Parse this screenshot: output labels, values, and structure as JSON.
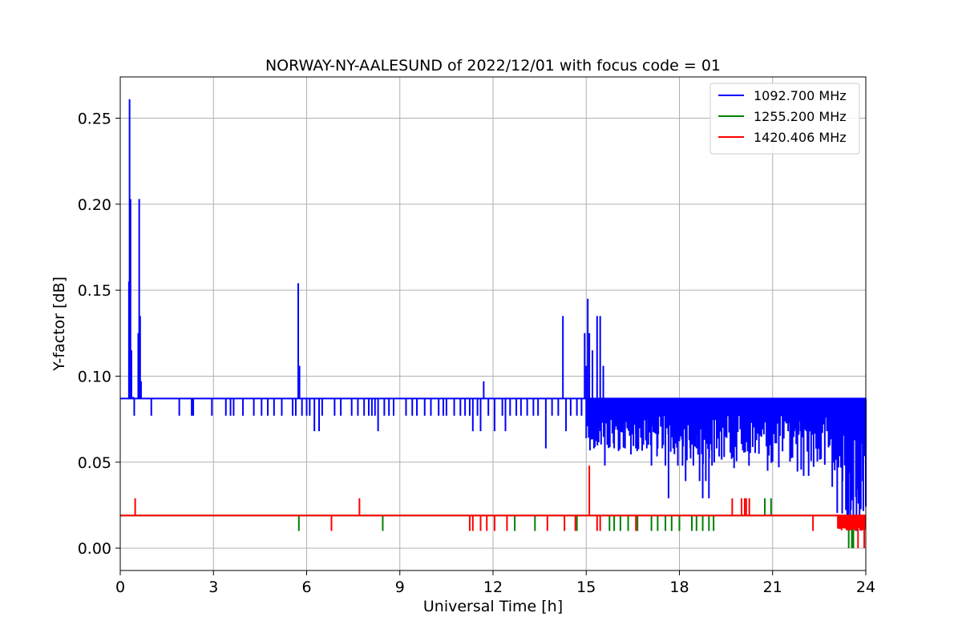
{
  "chart_data": {
    "type": "line",
    "title": "NORWAY-NY-AALESUND of 2022/12/01 with focus code = 01",
    "xlabel": "Universal Time [h]",
    "ylabel": "Y-factor [dB]",
    "xlim": [
      0,
      24
    ],
    "ylim": [
      -0.013,
      0.274
    ],
    "xticks": [
      0,
      3,
      6,
      9,
      12,
      15,
      18,
      21,
      24
    ],
    "xtick_labels": [
      "0",
      "3",
      "6",
      "9",
      "12",
      "15",
      "18",
      "21",
      "24"
    ],
    "yticks": [
      0.0,
      0.05,
      0.1,
      0.15,
      0.2,
      0.25
    ],
    "ytick_labels": [
      "0.00",
      "0.05",
      "0.10",
      "0.15",
      "0.20",
      "0.25"
    ],
    "grid": true,
    "legend_position": "top-right",
    "series": [
      {
        "name": "1092.700 MHz",
        "color": "#0000ff",
        "baseline": 0.087,
        "spikes": [
          [
            0.28,
            0.155
          ],
          [
            0.3,
            0.261
          ],
          [
            0.33,
            0.203
          ],
          [
            0.36,
            0.115
          ],
          [
            0.42,
            0.088
          ],
          [
            0.58,
            0.125
          ],
          [
            0.61,
            0.203
          ],
          [
            0.64,
            0.135
          ],
          [
            0.67,
            0.097
          ],
          [
            5.73,
            0.154
          ],
          [
            5.77,
            0.106
          ],
          [
            11.7,
            0.097
          ],
          [
            14.25,
            0.135
          ],
          [
            14.95,
            0.125
          ],
          [
            15.0,
            0.106
          ],
          [
            15.05,
            0.145
          ],
          [
            15.1,
            0.125
          ],
          [
            15.2,
            0.115
          ],
          [
            15.35,
            0.135
          ],
          [
            15.45,
            0.135
          ],
          [
            15.55,
            0.106
          ]
        ],
        "dips": [
          [
            0.45,
            0.077
          ],
          [
            1.0,
            0.077
          ],
          [
            1.9,
            0.077
          ],
          [
            2.3,
            0.077
          ],
          [
            2.35,
            0.077
          ],
          [
            2.95,
            0.077
          ],
          [
            3.4,
            0.077
          ],
          [
            3.55,
            0.077
          ],
          [
            3.65,
            0.077
          ],
          [
            3.95,
            0.077
          ],
          [
            4.3,
            0.077
          ],
          [
            4.55,
            0.077
          ],
          [
            4.75,
            0.077
          ],
          [
            4.95,
            0.077
          ],
          [
            5.2,
            0.077
          ],
          [
            5.55,
            0.077
          ],
          [
            5.65,
            0.077
          ],
          [
            5.85,
            0.077
          ],
          [
            6.0,
            0.077
          ],
          [
            6.1,
            0.077
          ],
          [
            6.25,
            0.068
          ],
          [
            6.4,
            0.068
          ],
          [
            6.5,
            0.077
          ],
          [
            6.9,
            0.077
          ],
          [
            7.1,
            0.077
          ],
          [
            7.45,
            0.077
          ],
          [
            7.65,
            0.077
          ],
          [
            7.85,
            0.077
          ],
          [
            8.0,
            0.077
          ],
          [
            8.1,
            0.077
          ],
          [
            8.2,
            0.077
          ],
          [
            8.3,
            0.068
          ],
          [
            8.5,
            0.077
          ],
          [
            8.65,
            0.077
          ],
          [
            8.8,
            0.077
          ],
          [
            9.2,
            0.077
          ],
          [
            9.4,
            0.077
          ],
          [
            9.55,
            0.077
          ],
          [
            9.8,
            0.077
          ],
          [
            10.0,
            0.077
          ],
          [
            10.25,
            0.077
          ],
          [
            10.4,
            0.077
          ],
          [
            10.5,
            0.077
          ],
          [
            10.75,
            0.077
          ],
          [
            10.95,
            0.077
          ],
          [
            11.1,
            0.077
          ],
          [
            11.25,
            0.077
          ],
          [
            11.35,
            0.068
          ],
          [
            11.5,
            0.077
          ],
          [
            11.6,
            0.068
          ],
          [
            11.85,
            0.077
          ],
          [
            12.05,
            0.068
          ],
          [
            12.3,
            0.077
          ],
          [
            12.4,
            0.068
          ],
          [
            12.55,
            0.077
          ],
          [
            12.75,
            0.077
          ],
          [
            12.9,
            0.077
          ],
          [
            13.1,
            0.077
          ],
          [
            13.3,
            0.077
          ],
          [
            13.45,
            0.077
          ],
          [
            13.7,
            0.058
          ],
          [
            13.9,
            0.077
          ],
          [
            14.1,
            0.077
          ],
          [
            14.35,
            0.068
          ],
          [
            14.5,
            0.077
          ],
          [
            14.7,
            0.077
          ],
          [
            14.85,
            0.077
          ],
          [
            15.25,
            0.058
          ],
          [
            15.45,
            0.068
          ],
          [
            15.6,
            0.048
          ],
          [
            15.75,
            0.068
          ],
          [
            15.9,
            0.058
          ],
          [
            16.1,
            0.068
          ],
          [
            16.25,
            0.058
          ],
          [
            16.4,
            0.068
          ],
          [
            16.6,
            0.058
          ],
          [
            16.8,
            0.058
          ],
          [
            16.95,
            0.058
          ],
          [
            17.1,
            0.048
          ],
          [
            17.3,
            0.058
          ],
          [
            17.45,
            0.058
          ],
          [
            17.55,
            0.048
          ],
          [
            17.65,
            0.029
          ],
          [
            17.8,
            0.058
          ],
          [
            17.95,
            0.048
          ],
          [
            18.1,
            0.048
          ],
          [
            18.2,
            0.039
          ],
          [
            18.35,
            0.058
          ],
          [
            18.45,
            0.048
          ],
          [
            18.55,
            0.058
          ],
          [
            18.65,
            0.039
          ],
          [
            18.75,
            0.029
          ],
          [
            18.85,
            0.039
          ],
          [
            18.95,
            0.029
          ],
          [
            19.05,
            0.048
          ],
          [
            19.2,
            0.058
          ],
          [
            19.35,
            0.068
          ],
          [
            19.5,
            0.077
          ],
          [
            19.65,
            0.077
          ],
          [
            20.2,
            0.068
          ],
          [
            20.6,
            0.077
          ],
          [
            20.8,
            0.077
          ],
          [
            21.3,
            0.077
          ],
          [
            21.5,
            0.068
          ],
          [
            21.7,
            0.068
          ],
          [
            21.9,
            0.068
          ],
          [
            22.1,
            0.068
          ],
          [
            22.3,
            0.068
          ],
          [
            22.55,
            0.068
          ],
          [
            22.75,
            0.068
          ],
          [
            22.95,
            0.058
          ],
          [
            23.1,
            0.048
          ],
          [
            23.25,
            0.039
          ],
          [
            23.4,
            0.029
          ],
          [
            23.5,
            0.019
          ],
          [
            23.6,
            0.0
          ],
          [
            23.7,
            0.01
          ],
          [
            23.8,
            0.029
          ],
          [
            23.9,
            0.039
          ]
        ],
        "dense_from": 15.0,
        "dense_to": 24.0
      },
      {
        "name": "1255.200 MHz",
        "color": "#008000",
        "baseline": 0.019,
        "spikes": [
          [
            20.75,
            0.029
          ],
          [
            20.95,
            0.029
          ]
        ],
        "dips": [
          [
            5.75,
            0.01
          ],
          [
            8.45,
            0.01
          ],
          [
            12.7,
            0.01
          ],
          [
            13.35,
            0.01
          ],
          [
            14.7,
            0.01
          ],
          [
            15.75,
            0.01
          ],
          [
            15.9,
            0.01
          ],
          [
            16.1,
            0.01
          ],
          [
            16.35,
            0.01
          ],
          [
            16.65,
            0.01
          ],
          [
            17.1,
            0.01
          ],
          [
            17.3,
            0.01
          ],
          [
            17.55,
            0.01
          ],
          [
            17.75,
            0.01
          ],
          [
            18.0,
            0.01
          ],
          [
            18.4,
            0.01
          ],
          [
            18.55,
            0.01
          ],
          [
            18.75,
            0.01
          ],
          [
            18.95,
            0.01
          ],
          [
            19.1,
            0.01
          ],
          [
            23.45,
            0.0
          ],
          [
            23.55,
            0.0
          ],
          [
            23.6,
            0.0
          ]
        ]
      },
      {
        "name": "1420.406 MHz",
        "color": "#ff0000",
        "baseline": 0.019,
        "spikes": [
          [
            0.48,
            0.029
          ],
          [
            7.7,
            0.029
          ],
          [
            15.1,
            0.048
          ],
          [
            19.7,
            0.029
          ],
          [
            20.0,
            0.029
          ],
          [
            20.1,
            0.029
          ],
          [
            20.15,
            0.029
          ],
          [
            20.25,
            0.029
          ]
        ],
        "dips": [
          [
            6.8,
            0.01
          ],
          [
            11.25,
            0.01
          ],
          [
            11.35,
            0.01
          ],
          [
            11.6,
            0.01
          ],
          [
            11.8,
            0.01
          ],
          [
            12.05,
            0.01
          ],
          [
            12.45,
            0.01
          ],
          [
            13.75,
            0.01
          ],
          [
            14.3,
            0.01
          ],
          [
            14.65,
            0.01
          ],
          [
            15.35,
            0.01
          ],
          [
            15.45,
            0.01
          ],
          [
            16.6,
            0.01
          ],
          [
            22.3,
            0.01
          ],
          [
            23.75,
            0.0
          ],
          [
            23.95,
            0.0
          ]
        ],
        "dense_from": 23.1,
        "dense_to": 24.0,
        "dense_min": 0.01
      }
    ]
  }
}
